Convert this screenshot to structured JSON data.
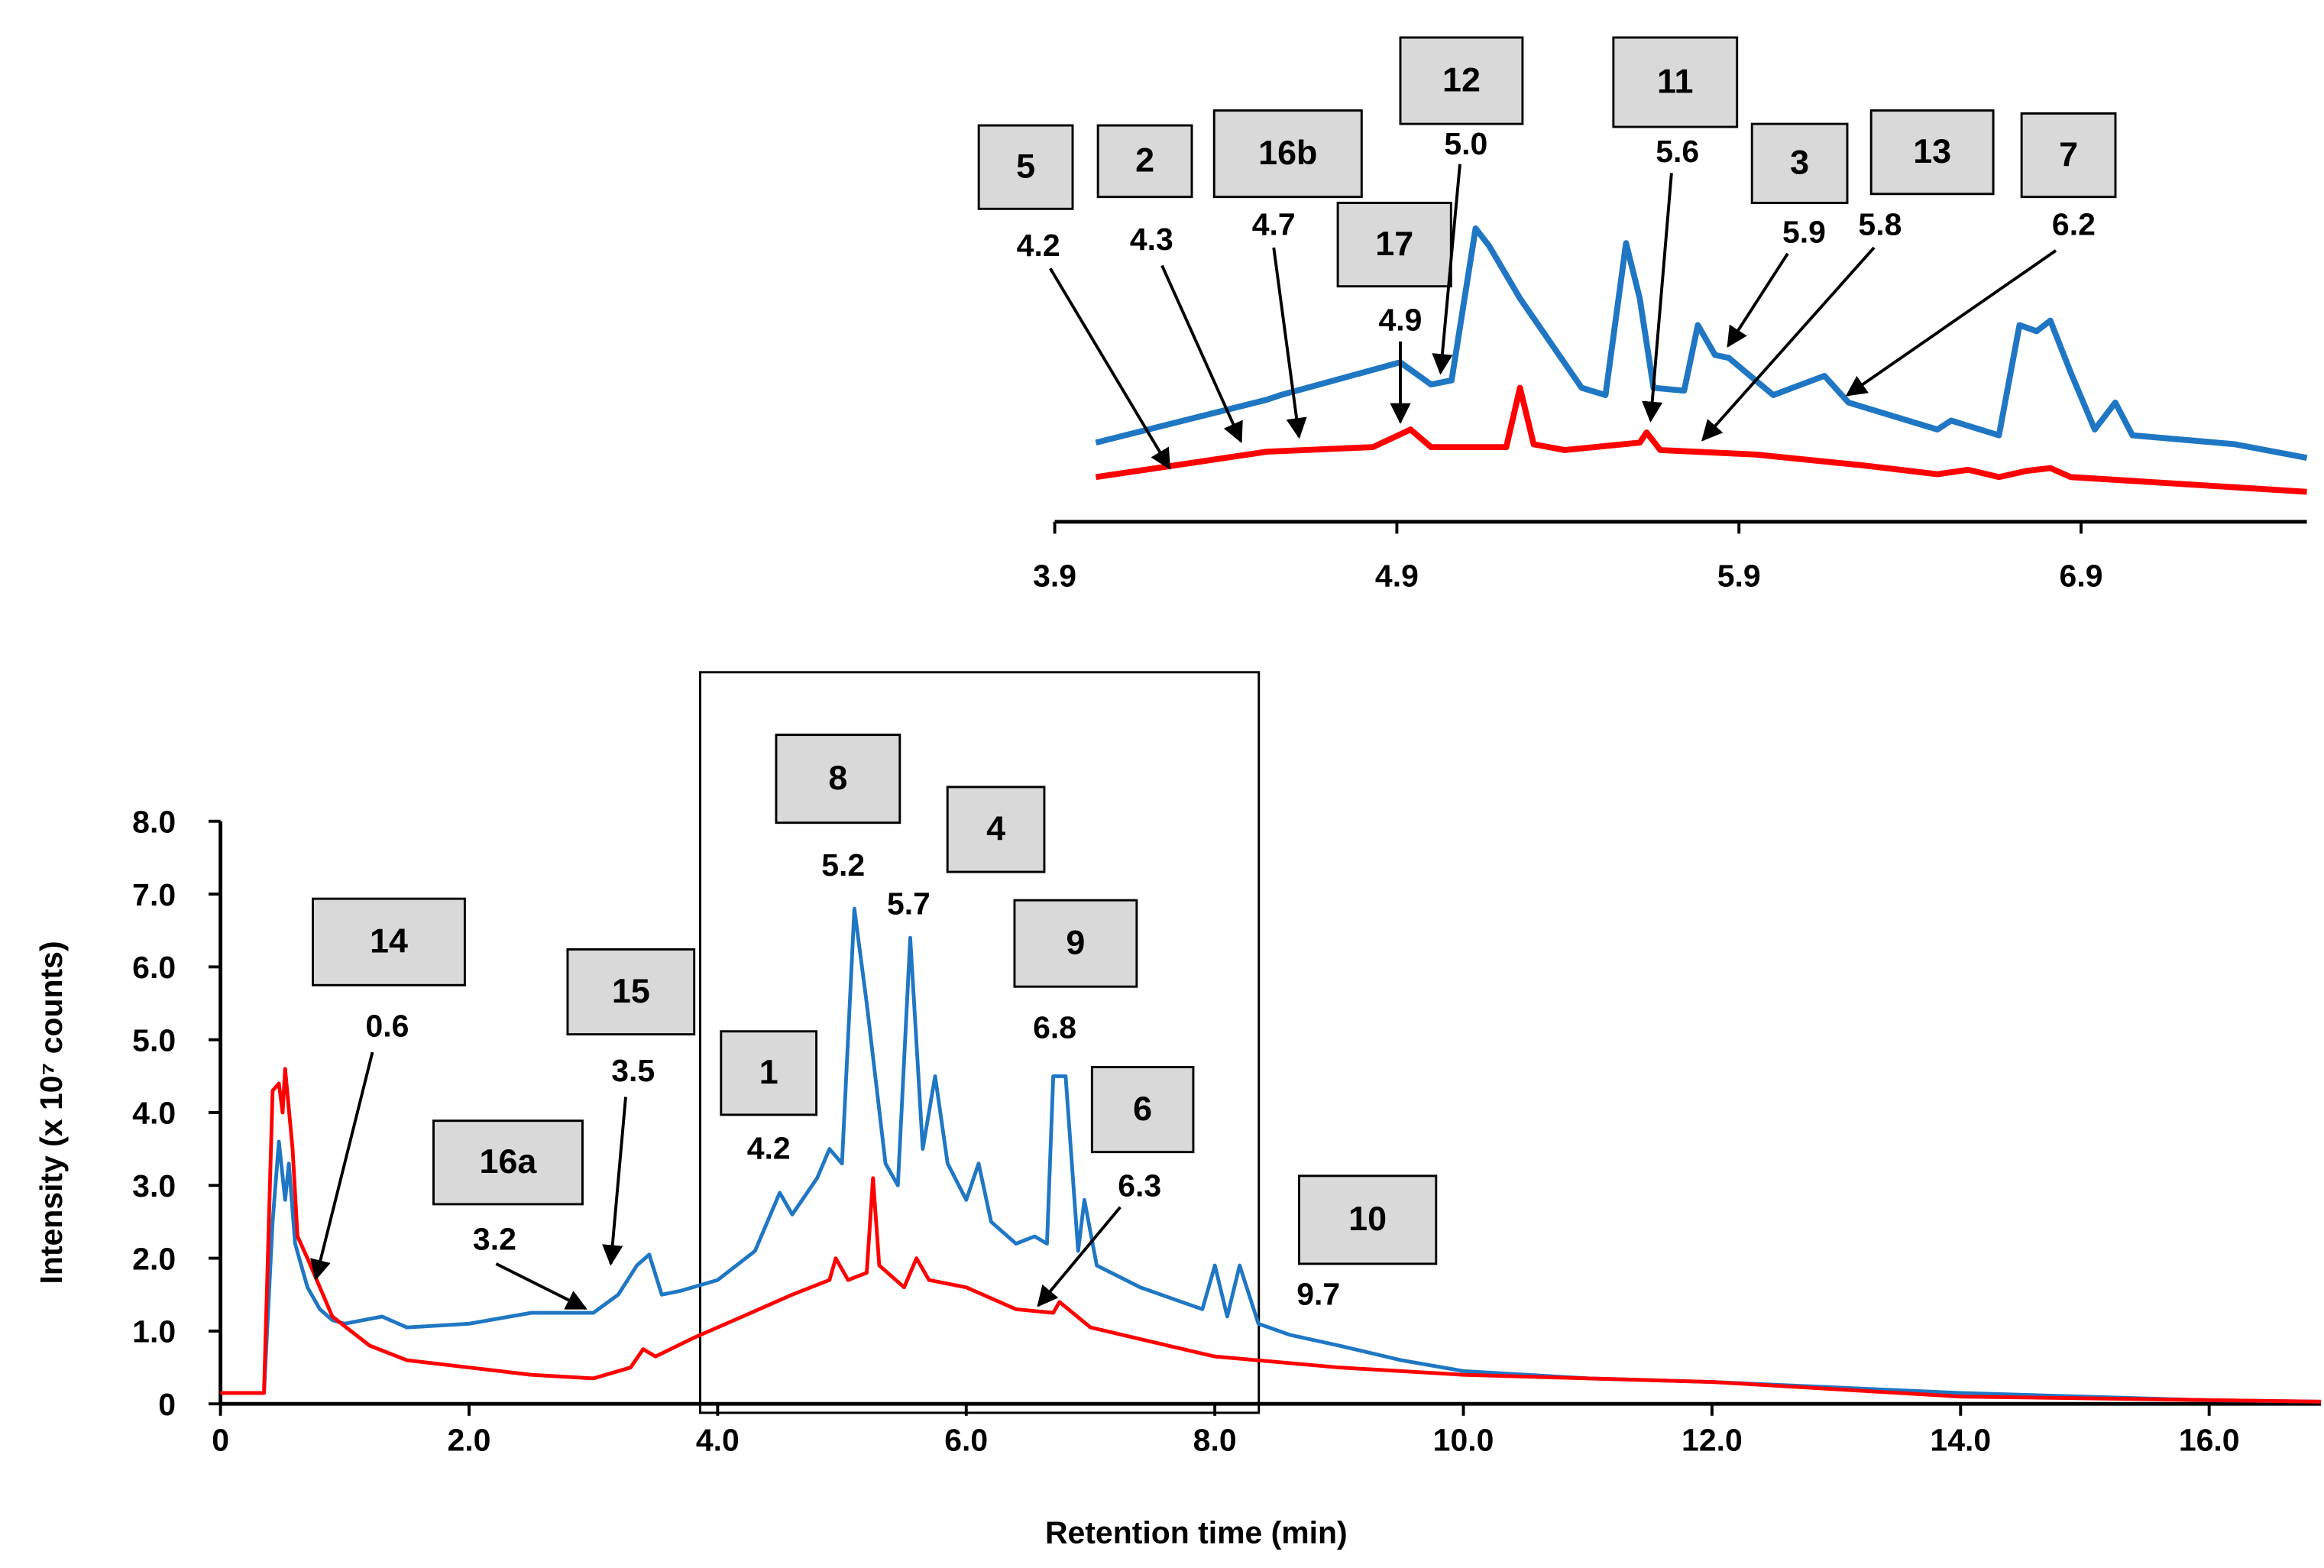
{
  "chart_data": [
    {
      "type": "line",
      "xlabel": "Retention time (min)",
      "ylabel": "Intensity (x 10⁷ counts)",
      "xlim": [
        0,
        16.9
      ],
      "ylim": [
        0,
        8
      ],
      "xticks": [
        0,
        {
          "value": 2,
          "label": "2.0"
        },
        {
          "value": 4,
          "label": "4.0"
        },
        {
          "value": 6,
          "label": "6.0"
        },
        {
          "value": 8,
          "label": "8.0"
        },
        {
          "value": 10,
          "label": "10.0"
        },
        {
          "value": 12,
          "label": "12.0"
        },
        {
          "value": 14,
          "label": "14.0"
        },
        {
          "value": 16,
          "label": "16.0"
        }
      ],
      "yticks": [
        0,
        {
          "value": 1,
          "label": "1.0"
        },
        {
          "value": 2,
          "label": "2.0"
        },
        {
          "value": 3,
          "label": "3.0"
        },
        {
          "value": 4,
          "label": "4.0"
        },
        {
          "value": 5,
          "label": "5.0"
        },
        {
          "value": 6,
          "label": "6.0"
        },
        {
          "value": 7,
          "label": "7.0"
        },
        {
          "value": 8,
          "label": "8.0"
        }
      ],
      "series": [
        {
          "color": "#1f77c4",
          "x": [
            0,
            0.35,
            0.42,
            0.47,
            0.52,
            0.55,
            0.6,
            0.7,
            0.8,
            0.9,
            1.0,
            1.3,
            1.5,
            2.0,
            2.5,
            3.0,
            3.2,
            3.35,
            3.45,
            3.55,
            3.7,
            4.0,
            4.3,
            4.5,
            4.6,
            4.8,
            4.9,
            5.0,
            5.1,
            5.2,
            5.35,
            5.45,
            5.55,
            5.65,
            5.75,
            5.85,
            6.0,
            6.1,
            6.2,
            6.4,
            6.55,
            6.65,
            6.7,
            6.8,
            6.9,
            6.95,
            7.05,
            7.4,
            7.9,
            8.0,
            8.1,
            8.2,
            8.35,
            8.6,
            9.0,
            9.5,
            10.0,
            11.0,
            12.0,
            14.0,
            16.0,
            16.9
          ],
          "values": [
            0.15,
            0.15,
            2.5,
            3.6,
            2.8,
            3.3,
            2.2,
            1.6,
            1.3,
            1.15,
            1.1,
            1.2,
            1.05,
            1.1,
            1.25,
            1.25,
            1.5,
            1.9,
            2.05,
            1.5,
            1.55,
            1.7,
            2.1,
            2.9,
            2.6,
            3.1,
            3.5,
            3.3,
            6.8,
            5.5,
            3.3,
            3.0,
            6.4,
            3.5,
            4.5,
            3.3,
            2.8,
            3.3,
            2.5,
            2.2,
            2.3,
            2.2,
            4.5,
            4.5,
            2.1,
            2.8,
            1.9,
            1.6,
            1.3,
            1.9,
            1.2,
            1.9,
            1.1,
            0.95,
            0.8,
            0.6,
            0.45,
            0.35,
            0.3,
            0.15,
            0.05,
            0.03
          ]
        },
        {
          "color": "#ff0000",
          "x": [
            0,
            0.35,
            0.42,
            0.47,
            0.5,
            0.52,
            0.58,
            0.62,
            0.7,
            0.8,
            0.9,
            1.2,
            1.5,
            2.0,
            2.5,
            3.0,
            3.3,
            3.4,
            3.5,
            3.8,
            4.2,
            4.6,
            4.9,
            4.95,
            5.05,
            5.2,
            5.25,
            5.3,
            5.5,
            5.6,
            5.7,
            6.0,
            6.4,
            6.7,
            6.75,
            7.0,
            7.5,
            8.0,
            9.0,
            10.0,
            12.0,
            14.0,
            16.9
          ],
          "values": [
            0.15,
            0.15,
            4.3,
            4.4,
            4.0,
            4.6,
            3.5,
            2.3,
            2.0,
            1.6,
            1.2,
            0.8,
            0.6,
            0.5,
            0.4,
            0.35,
            0.5,
            0.75,
            0.65,
            0.9,
            1.2,
            1.5,
            1.7,
            2.0,
            1.7,
            1.8,
            3.1,
            1.9,
            1.6,
            2.0,
            1.7,
            1.6,
            1.3,
            1.25,
            1.4,
            1.05,
            0.85,
            0.65,
            0.5,
            0.4,
            0.3,
            0.1,
            0.03
          ]
        }
      ],
      "annotations": [
        {
          "label": "14",
          "time": "0.6"
        },
        {
          "label": "15",
          "time": "3.5"
        },
        {
          "label": "16a",
          "time": "3.2"
        },
        {
          "label": "1",
          "time": "4.2"
        },
        {
          "label": "8",
          "time": "5.2"
        },
        {
          "label": "4",
          "time": "5.7"
        },
        {
          "label": "9",
          "time": "6.8"
        },
        {
          "label": "6",
          "time": "6.3"
        },
        {
          "label": "10",
          "time": "9.7"
        }
      ]
    },
    {
      "type": "line",
      "xlim": [
        3.9,
        7.56
      ],
      "ylim": [
        0,
        8
      ],
      "xticks": [
        3.9,
        4.9,
        5.9,
        6.9
      ],
      "series": [
        {
          "color": "#1f77c4",
          "x": [
            4.02,
            4.52,
            4.56,
            4.91,
            5.0,
            5.06,
            5.13,
            5.17,
            5.26,
            5.44,
            5.51,
            5.57,
            5.61,
            5.65,
            5.74,
            5.78,
            5.83,
            5.87,
            6.0,
            6.15,
            6.22,
            6.48,
            6.52,
            6.66,
            6.72,
            6.77,
            6.81,
            6.87,
            6.94,
            7.0,
            7.05,
            7.35,
            7.56
          ],
          "values": [
            1.93,
            2.98,
            3.09,
            3.89,
            3.35,
            3.45,
            7.16,
            6.73,
            5.45,
            3.27,
            3.09,
            6.8,
            5.45,
            3.27,
            3.2,
            4.8,
            4.07,
            4.0,
            3.09,
            3.56,
            2.91,
            2.25,
            2.47,
            2.11,
            4.8,
            4.65,
            4.91,
            3.64,
            2.25,
            2.91,
            2.11,
            1.89,
            1.56
          ]
        },
        {
          "color": "#ff0000",
          "x": [
            4.02,
            4.52,
            4.83,
            4.94,
            5.0,
            5.22,
            5.26,
            5.3,
            5.39,
            5.61,
            5.63,
            5.67,
            5.95,
            6.26,
            6.48,
            6.57,
            6.66,
            6.74,
            6.81,
            6.87,
            7.56
          ],
          "values": [
            1.09,
            1.71,
            1.82,
            2.25,
            1.82,
            1.82,
            3.27,
            1.89,
            1.75,
            1.93,
            2.18,
            1.75,
            1.64,
            1.38,
            1.16,
            1.27,
            1.09,
            1.24,
            1.31,
            1.09,
            0.73
          ]
        }
      ],
      "annotations": [
        {
          "label": "5",
          "time": "4.2"
        },
        {
          "label": "2",
          "time": "4.3"
        },
        {
          "label": "16b",
          "time": "4.7"
        },
        {
          "label": "17",
          "time": "4.9"
        },
        {
          "label": "12",
          "time": "5.0"
        },
        {
          "label": "11",
          "time": "5.6"
        },
        {
          "label": "3",
          "time": "5.9"
        },
        {
          "label": "13",
          "time": "5.8"
        },
        {
          "label": "7",
          "time": "6.2"
        }
      ]
    }
  ]
}
